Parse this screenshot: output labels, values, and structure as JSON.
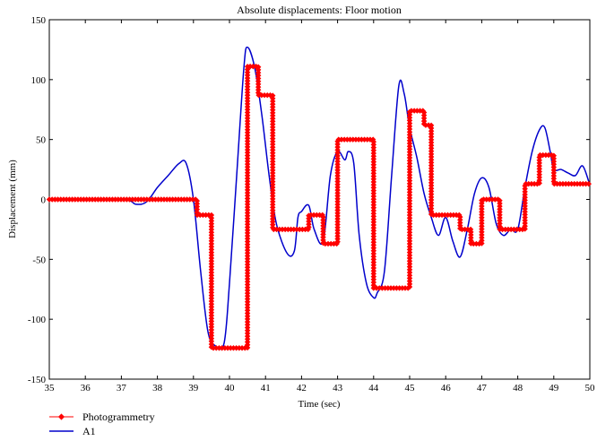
{
  "chart_data": {
    "type": "line",
    "title": "Absolute displacements: Floor motion",
    "xlabel": "Time (sec)",
    "ylabel": "Displacement (mm)",
    "xlim": [
      35,
      50
    ],
    "ylim": [
      -150,
      150
    ],
    "xticks": [
      35,
      36,
      37,
      38,
      39,
      40,
      41,
      42,
      43,
      44,
      45,
      46,
      47,
      48,
      49,
      50
    ],
    "yticks": [
      -150,
      -100,
      -50,
      0,
      50,
      100,
      150
    ],
    "grid": false,
    "legend_position": "bottom-left",
    "series": [
      {
        "name": "Photogrammetry",
        "color": "#ff0000",
        "marker": "diamond",
        "step": true,
        "x": [
          35.0,
          39.0,
          39.1,
          39.5,
          39.8,
          40.5,
          40.8,
          41.2,
          41.9,
          42.2,
          42.6,
          43.0,
          43.6,
          44.0,
          44.6,
          45.0,
          45.4,
          45.6,
          46.0,
          46.4,
          46.7,
          47.0,
          47.4,
          47.5,
          48.0,
          48.2,
          48.4,
          48.6,
          49.0,
          50.0
        ],
        "y": [
          0,
          0,
          -13,
          -124,
          -124,
          111,
          87,
          -25,
          -25,
          -13,
          -37,
          50,
          50,
          -74,
          -74,
          74,
          62,
          -13,
          -13,
          -25,
          -37,
          0,
          0,
          -25,
          -25,
          13,
          13,
          37,
          13,
          13
        ]
      },
      {
        "name": "A1",
        "color": "#0000cc",
        "x": [
          35.0,
          37.0,
          37.4,
          37.7,
          38.0,
          38.3,
          38.6,
          38.8,
          39.0,
          39.2,
          39.4,
          39.6,
          39.85,
          40.0,
          40.2,
          40.4,
          40.5,
          40.7,
          40.9,
          41.1,
          41.3,
          41.6,
          41.8,
          41.9,
          42.0,
          42.2,
          42.35,
          42.6,
          42.8,
          43.0,
          43.2,
          43.3,
          43.45,
          43.6,
          43.8,
          44.0,
          44.1,
          44.3,
          44.5,
          44.7,
          44.85,
          45.0,
          45.2,
          45.4,
          45.6,
          45.8,
          46.0,
          46.2,
          46.4,
          46.6,
          46.8,
          47.0,
          47.2,
          47.4,
          47.6,
          47.8,
          48.0,
          48.2,
          48.4,
          48.6,
          48.75,
          48.9,
          49.0,
          49.2,
          49.4,
          49.6,
          49.8,
          50.0
        ],
        "y": [
          0,
          0,
          -4,
          -2,
          10,
          20,
          30,
          30,
          0,
          -60,
          -110,
          -122,
          -120,
          -70,
          20,
          110,
          127,
          110,
          70,
          20,
          -20,
          -45,
          -43,
          -15,
          -10,
          -5,
          -25,
          -35,
          20,
          40,
          33,
          40,
          30,
          -30,
          -70,
          -82,
          -78,
          -60,
          20,
          95,
          88,
          60,
          35,
          5,
          -15,
          -30,
          -15,
          -35,
          -48,
          -25,
          5,
          18,
          10,
          -20,
          -30,
          -25,
          -25,
          10,
          40,
          58,
          60,
          40,
          25,
          25,
          22,
          20,
          28,
          12
        ]
      }
    ]
  }
}
